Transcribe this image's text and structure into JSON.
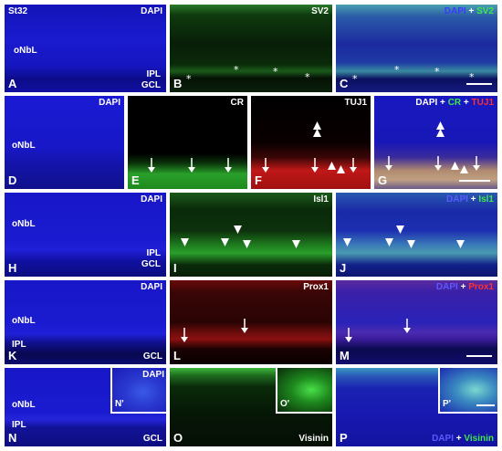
{
  "rows": {
    "row1": {
      "A": {
        "letter": "A",
        "stain": "DAPI",
        "stage": "St32",
        "ipl": "IPL",
        "gcl": "GCL",
        "onbl": "oNbL"
      },
      "B": {
        "letter": "B",
        "stain": "SV2",
        "asterisk": "*"
      },
      "C": {
        "letter": "C",
        "dapi": "DAPI",
        "plus": " + ",
        "marker": "SV2"
      }
    },
    "row2": {
      "D": {
        "letter": "D",
        "stain": "DAPI",
        "onbl": "oNbL"
      },
      "E": {
        "letter": "E",
        "stain": "CR"
      },
      "F": {
        "letter": "F",
        "stain": "TUJ1"
      },
      "G": {
        "letter": "G",
        "dapi": "DAPI",
        "plus1": " + ",
        "cr": "CR",
        "plus2": " + ",
        "tuj1": "TUJ1"
      }
    },
    "row3": {
      "H": {
        "letter": "H",
        "stain": "DAPI",
        "onbl": "oNbL",
        "ipl": "IPL",
        "gcl": "GCL"
      },
      "I": {
        "letter": "I",
        "stain": "Isl1"
      },
      "J": {
        "letter": "J",
        "dapi": "DAPI",
        "plus": " + ",
        "marker": "Isl1"
      }
    },
    "row4": {
      "K": {
        "letter": "K",
        "stain": "DAPI",
        "onbl": "oNbL",
        "ipl": "IPL",
        "gcl": "GCL"
      },
      "L": {
        "letter": "L",
        "stain": "Prox1"
      },
      "M": {
        "letter": "M",
        "dapi": "DAPI",
        "plus": " + ",
        "marker": "Prox1"
      }
    },
    "row5": {
      "N": {
        "letter": "N",
        "stain": "DAPI",
        "inset": "N'",
        "onbl": "oNbL",
        "ipl": "IPL",
        "gcl": "GCL"
      },
      "O": {
        "letter": "O",
        "stain": "Visinin",
        "inset": "O'"
      },
      "P": {
        "letter": "P",
        "dapi": "DAPI",
        "plus": " + ",
        "marker": "Visinin",
        "inset": "P'"
      }
    }
  },
  "colors": {
    "dapi_blue": "#1a1ad8",
    "green": "#2ecc40",
    "red": "#e8202a",
    "white": "#ffffff"
  }
}
